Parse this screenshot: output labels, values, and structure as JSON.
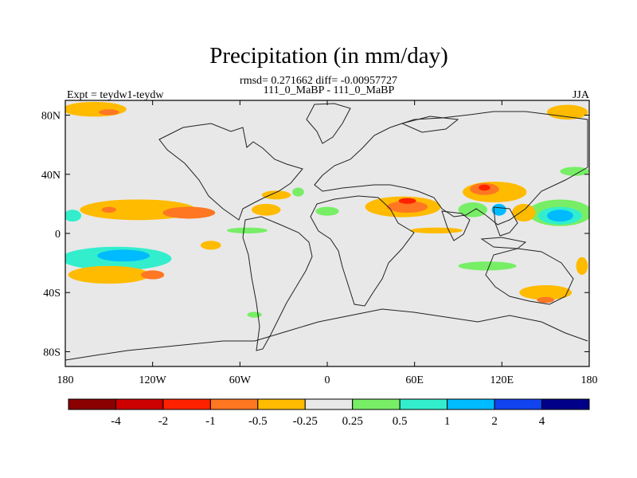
{
  "chart_data": {
    "type": "heatmap",
    "title": "Precipitation (in mm/day)",
    "subtitle": "rmsd= 0.271662 diff= -0.00957727",
    "comparison": "111_0_MaBP - 111_0_MaBP",
    "left_label": "Expt = teydw1-teydw",
    "right_label": "JJA",
    "x_axis": {
      "range": [
        -180,
        180
      ],
      "ticks": [
        {
          "v": -180,
          "label": "180"
        },
        {
          "v": -120,
          "label": "120W"
        },
        {
          "v": -60,
          "label": "60W"
        },
        {
          "v": 0,
          "label": "0"
        },
        {
          "v": 60,
          "label": "60E"
        },
        {
          "v": 120,
          "label": "120E"
        },
        {
          "v": 180,
          "label": "180"
        }
      ]
    },
    "y_axis": {
      "range": [
        -90,
        90
      ],
      "ticks": [
        {
          "v": 80,
          "label": "80N"
        },
        {
          "v": 40,
          "label": "40N"
        },
        {
          "v": 0,
          "label": "0"
        },
        {
          "v": -40,
          "label": "40S"
        },
        {
          "v": -80,
          "label": "80S"
        }
      ]
    },
    "colorbar": {
      "colors": [
        "#8b0000",
        "#cc0000",
        "#ff2200",
        "#ff7722",
        "#ffbb00",
        "#e8e8e8",
        "#77ee66",
        "#33eecc",
        "#00bbff",
        "#1144ee",
        "#000088"
      ],
      "labels": [
        "-4",
        "-2",
        "-1",
        "-0.5",
        "-0.25",
        "0.25",
        "0.5",
        "1",
        "2",
        "4"
      ]
    },
    "anomaly_regions": [
      {
        "lon": -160,
        "lat": 84,
        "rx": 22,
        "ry": 5,
        "level": 4
      },
      {
        "lon": -150,
        "lat": 82,
        "rx": 7,
        "ry": 2,
        "level": 3
      },
      {
        "lon": 165,
        "lat": 82,
        "rx": 14,
        "ry": 5,
        "level": 4
      },
      {
        "lon": -130,
        "lat": 16,
        "rx": 40,
        "ry": 7,
        "level": 4
      },
      {
        "lon": -150,
        "lat": 16,
        "rx": 5,
        "ry": 2,
        "level": 3
      },
      {
        "lon": -95,
        "lat": 14,
        "rx": 18,
        "ry": 4,
        "level": 3
      },
      {
        "lon": -42,
        "lat": 16,
        "rx": 10,
        "ry": 4,
        "level": 4
      },
      {
        "lon": -35,
        "lat": 26,
        "rx": 10,
        "ry": 3,
        "level": 4
      },
      {
        "lon": -175,
        "lat": 12,
        "rx": 6,
        "ry": 4,
        "level": 7
      },
      {
        "lon": -145,
        "lat": -17,
        "rx": 38,
        "ry": 8,
        "level": 7
      },
      {
        "lon": -140,
        "lat": -15,
        "rx": 18,
        "ry": 4,
        "level": 8
      },
      {
        "lon": -150,
        "lat": -28,
        "rx": 28,
        "ry": 6,
        "level": 4
      },
      {
        "lon": -120,
        "lat": -28,
        "rx": 8,
        "ry": 3,
        "level": 3
      },
      {
        "lon": -55,
        "lat": 2,
        "rx": 14,
        "ry": 2,
        "level": 6
      },
      {
        "lon": 52,
        "lat": 18,
        "rx": 26,
        "ry": 7,
        "level": 4
      },
      {
        "lon": 55,
        "lat": 18,
        "rx": 14,
        "ry": 4,
        "level": 3
      },
      {
        "lon": 55,
        "lat": 22,
        "rx": 6,
        "ry": 2,
        "level": 2
      },
      {
        "lon": 115,
        "lat": 28,
        "rx": 22,
        "ry": 7,
        "level": 4
      },
      {
        "lon": 108,
        "lat": 30,
        "rx": 10,
        "ry": 4,
        "level": 3
      },
      {
        "lon": 108,
        "lat": 31,
        "rx": 4,
        "ry": 2,
        "level": 2
      },
      {
        "lon": 160,
        "lat": 14,
        "rx": 22,
        "ry": 9,
        "level": 6
      },
      {
        "lon": 160,
        "lat": 12,
        "rx": 15,
        "ry": 6,
        "level": 7
      },
      {
        "lon": 160,
        "lat": 12,
        "rx": 9,
        "ry": 4,
        "level": 8
      },
      {
        "lon": 135,
        "lat": 14,
        "rx": 8,
        "ry": 6,
        "level": 4
      },
      {
        "lon": 100,
        "lat": 16,
        "rx": 10,
        "ry": 5,
        "level": 6
      },
      {
        "lon": 118,
        "lat": 16,
        "rx": 5,
        "ry": 4,
        "level": 8
      },
      {
        "lon": 150,
        "lat": -40,
        "rx": 18,
        "ry": 5,
        "level": 4
      },
      {
        "lon": 150,
        "lat": -45,
        "rx": 6,
        "ry": 2,
        "level": 3
      },
      {
        "lon": 110,
        "lat": -22,
        "rx": 20,
        "ry": 3,
        "level": 6
      },
      {
        "lon": 75,
        "lat": 2,
        "rx": 18,
        "ry": 2,
        "level": 4
      },
      {
        "lon": 170,
        "lat": 42,
        "rx": 10,
        "ry": 3,
        "level": 6
      },
      {
        "lon": -20,
        "lat": 28,
        "rx": 4,
        "ry": 3,
        "level": 6
      },
      {
        "lon": 0,
        "lat": 15,
        "rx": 8,
        "ry": 3,
        "level": 6
      },
      {
        "lon": -50,
        "lat": -55,
        "rx": 5,
        "ry": 2,
        "level": 6
      },
      {
        "lon": -80,
        "lat": -8,
        "rx": 7,
        "ry": 3,
        "level": 4
      },
      {
        "lon": 175,
        "lat": -22,
        "rx": 4,
        "ry": 6,
        "level": 4
      }
    ]
  }
}
